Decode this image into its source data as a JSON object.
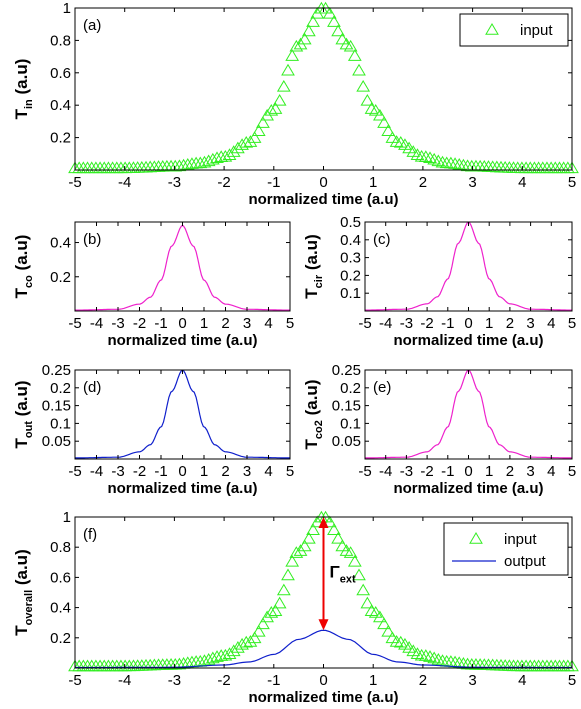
{
  "colors": {
    "input": "#33ee22",
    "co": "#ee22cc",
    "out": "#1020cc",
    "arrow": "#ee0000"
  },
  "chart_data": [
    {
      "id": "a",
      "panel_label": "(a)",
      "type": "scatter",
      "xlabel": "normalized time (a.u)",
      "ylabel_main": "T",
      "ylabel_sub": "in",
      "ylabel_tail": " (a.u)",
      "xlim": [
        -5,
        5
      ],
      "ylim": [
        0,
        1
      ],
      "xticks": [
        "-5",
        "-4",
        "-3",
        "-2",
        "-1",
        "0",
        "1",
        "2",
        "3",
        "4",
        "5"
      ],
      "yticks": [
        "0.2",
        "0.4",
        "0.6",
        "0.8",
        "1"
      ],
      "legend": [
        "input"
      ],
      "legend_loc": "top-right",
      "series": [
        {
          "name": "input",
          "kind": "triangle",
          "color": "input",
          "x": [
            -5,
            -4,
            -3,
            -2.5,
            -2,
            -1.5,
            -1,
            -0.5,
            0,
            0.5,
            1,
            1.5,
            2,
            2.5,
            3,
            4,
            5
          ],
          "y": [
            0.01,
            0.01,
            0.02,
            0.04,
            0.08,
            0.17,
            0.37,
            0.77,
            1.0,
            0.77,
            0.37,
            0.17,
            0.08,
            0.04,
            0.02,
            0.01,
            0.01
          ]
        }
      ]
    },
    {
      "id": "b",
      "panel_label": "(b)",
      "type": "line",
      "xlabel": "normalized time (a.u)",
      "ylabel_main": "T",
      "ylabel_sub": "co",
      "ylabel_tail": " (a.u)",
      "xlim": [
        -5,
        5
      ],
      "ylim": [
        0,
        0.52
      ],
      "xticks": [
        "-5",
        "-4",
        "-3",
        "-2",
        "-1",
        "0",
        "1",
        "2",
        "3",
        "4",
        "5"
      ],
      "yticks": [
        "0.2",
        "0.4"
      ],
      "series": [
        {
          "kind": "line",
          "color": "co",
          "x": [
            -5,
            -3,
            -2,
            -1.5,
            -1,
            -0.5,
            0,
            0.5,
            1,
            1.5,
            2,
            3,
            5
          ],
          "y": [
            0.005,
            0.01,
            0.04,
            0.08,
            0.18,
            0.38,
            0.5,
            0.38,
            0.18,
            0.08,
            0.04,
            0.01,
            0.005
          ]
        }
      ]
    },
    {
      "id": "c",
      "panel_label": "(c)",
      "type": "line",
      "xlabel": "normalized time (a.u)",
      "ylabel_main": "T",
      "ylabel_sub": "cir",
      "ylabel_tail": " (a.u)",
      "xlim": [
        -5,
        5
      ],
      "ylim": [
        0,
        0.5
      ],
      "xticks": [
        "-5",
        "-4",
        "-3",
        "-2",
        "-1",
        "0",
        "1",
        "2",
        "3",
        "4",
        "5"
      ],
      "yticks": [
        "0.1",
        "0.2",
        "0.3",
        "0.4",
        "0.5"
      ],
      "series": [
        {
          "kind": "line",
          "color": "co",
          "x": [
            -5,
            -3,
            -2,
            -1.5,
            -1,
            -0.5,
            0,
            0.5,
            1,
            1.5,
            2,
            3,
            5
          ],
          "y": [
            0.005,
            0.01,
            0.04,
            0.08,
            0.18,
            0.38,
            0.5,
            0.38,
            0.18,
            0.08,
            0.04,
            0.01,
            0.005
          ]
        }
      ]
    },
    {
      "id": "d",
      "panel_label": "(d)",
      "type": "line",
      "xlabel": "normalized time (a.u)",
      "ylabel_main": "T",
      "ylabel_sub": "out",
      "ylabel_tail": " (a.u)",
      "xlim": [
        -5,
        5
      ],
      "ylim": [
        0,
        0.25
      ],
      "xticks": [
        "-5",
        "-4",
        "-3",
        "-2",
        "-1",
        "0",
        "1",
        "2",
        "3",
        "4",
        "5"
      ],
      "yticks": [
        "0.05",
        "0.1",
        "0.15",
        "0.2",
        "0.25"
      ],
      "series": [
        {
          "kind": "line",
          "color": "out",
          "x": [
            -5,
            -3,
            -2,
            -1.5,
            -1,
            -0.5,
            0,
            0.5,
            1,
            1.5,
            2,
            3,
            5
          ],
          "y": [
            0.003,
            0.005,
            0.02,
            0.04,
            0.09,
            0.19,
            0.25,
            0.19,
            0.09,
            0.04,
            0.02,
            0.005,
            0.003
          ]
        }
      ]
    },
    {
      "id": "e",
      "panel_label": "(e)",
      "type": "line",
      "xlabel": "normalized time (a.u)",
      "ylabel_main": "T",
      "ylabel_sub": "co2",
      "ylabel_tail": " (a.u)",
      "xlim": [
        -5,
        5
      ],
      "ylim": [
        0,
        0.25
      ],
      "xticks": [
        "-5",
        "-4",
        "-3",
        "-2",
        "-1",
        "0",
        "1",
        "2",
        "3",
        "4",
        "5"
      ],
      "yticks": [
        "0.05",
        "0.1",
        "0.15",
        "0.2",
        "0.25"
      ],
      "series": [
        {
          "kind": "line",
          "color": "co",
          "x": [
            -5,
            -3,
            -2,
            -1.5,
            -1,
            -0.5,
            0,
            0.5,
            1,
            1.5,
            2,
            3,
            5
          ],
          "y": [
            0.003,
            0.005,
            0.02,
            0.04,
            0.09,
            0.19,
            0.25,
            0.19,
            0.09,
            0.04,
            0.02,
            0.005,
            0.003
          ]
        }
      ]
    },
    {
      "id": "f",
      "panel_label": "(f)",
      "type": "scatter",
      "xlabel": "normalized time (a.u)",
      "ylabel_main": "T",
      "ylabel_sub": "overall",
      "ylabel_tail": " (a.u)",
      "xlim": [
        -5,
        5
      ],
      "ylim": [
        0,
        1
      ],
      "xticks": [
        "-5",
        "-4",
        "-3",
        "-2",
        "-1",
        "0",
        "1",
        "2",
        "3",
        "4",
        "5"
      ],
      "yticks": [
        "0.2",
        "0.4",
        "0.6",
        "0.8",
        "1"
      ],
      "legend": [
        "input",
        "output"
      ],
      "legend_loc": "top-right",
      "annotation": {
        "main": "Γ",
        "sub": "ext",
        "arrow": {
          "x": 0,
          "y_from": 1.0,
          "y_to": 0.25
        }
      },
      "series": [
        {
          "name": "input",
          "kind": "triangle",
          "color": "input",
          "x": [
            -5,
            -4,
            -3,
            -2.5,
            -2,
            -1.5,
            -1,
            -0.5,
            0,
            0.5,
            1,
            1.5,
            2,
            2.5,
            3,
            4,
            5
          ],
          "y": [
            0.01,
            0.01,
            0.02,
            0.04,
            0.08,
            0.17,
            0.37,
            0.77,
            1.0,
            0.77,
            0.37,
            0.17,
            0.08,
            0.04,
            0.02,
            0.01,
            0.01
          ]
        },
        {
          "name": "output",
          "kind": "line",
          "color": "out",
          "x": [
            -5,
            -3,
            -2,
            -1.5,
            -1,
            -0.5,
            0,
            0.5,
            1,
            1.5,
            2,
            3,
            5
          ],
          "y": [
            0.003,
            0.005,
            0.02,
            0.04,
            0.09,
            0.19,
            0.25,
            0.19,
            0.09,
            0.04,
            0.02,
            0.005,
            0.003
          ]
        }
      ]
    }
  ]
}
